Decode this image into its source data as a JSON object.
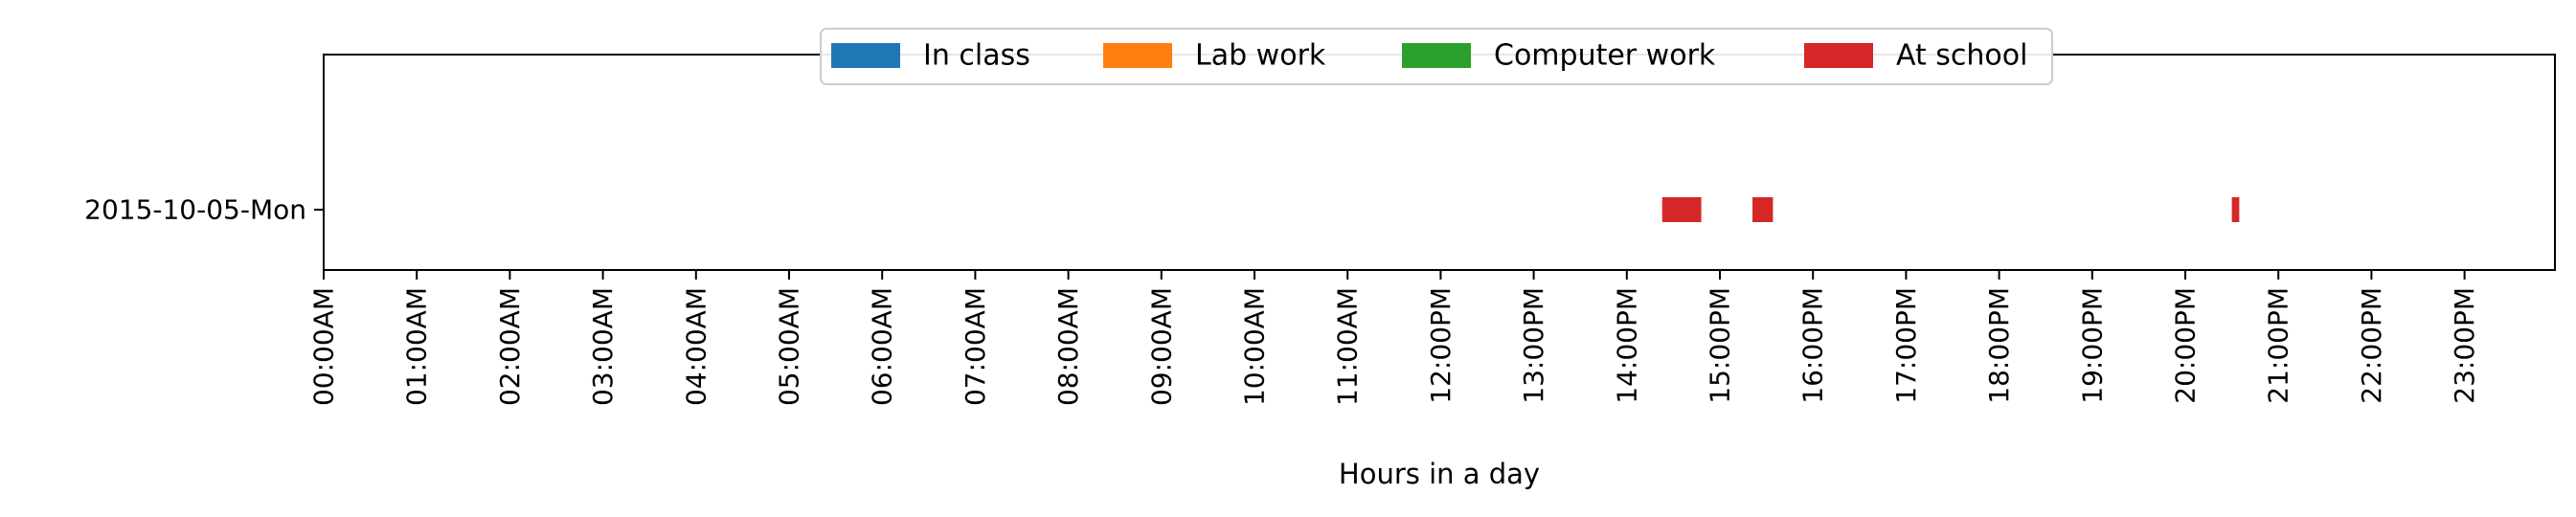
{
  "chart_data": {
    "type": "timeline",
    "title": "",
    "xlabel": "Hours in a day",
    "ylabel": "",
    "xlim": [
      0,
      24
    ],
    "x_ticks": [
      "00:00AM",
      "01:00AM",
      "02:00AM",
      "03:00AM",
      "04:00AM",
      "05:00AM",
      "06:00AM",
      "07:00AM",
      "08:00AM",
      "09:00AM",
      "10:00AM",
      "11:00AM",
      "12:00PM",
      "13:00PM",
      "14:00PM",
      "15:00PM",
      "16:00PM",
      "17:00PM",
      "18:00PM",
      "19:00PM",
      "20:00PM",
      "21:00PM",
      "22:00PM",
      "23:00PM"
    ],
    "categories": [
      "2015-10-05-Mon"
    ],
    "legend_position": "top-center",
    "grid": false,
    "series": [
      {
        "name": "In class",
        "color": "#1f77b4",
        "segments": []
      },
      {
        "name": "Lab work",
        "color": "#ff7f0e",
        "segments": []
      },
      {
        "name": "Computer work",
        "color": "#2ca02c",
        "segments": []
      },
      {
        "name": "At school",
        "color": "#d62728",
        "segments": [
          {
            "day": "2015-10-05-Mon",
            "start": 14.38,
            "end": 14.8
          },
          {
            "day": "2015-10-05-Mon",
            "start": 15.35,
            "end": 15.57
          },
          {
            "day": "2015-10-05-Mon",
            "start": 20.5,
            "end": 20.58
          }
        ]
      }
    ]
  }
}
